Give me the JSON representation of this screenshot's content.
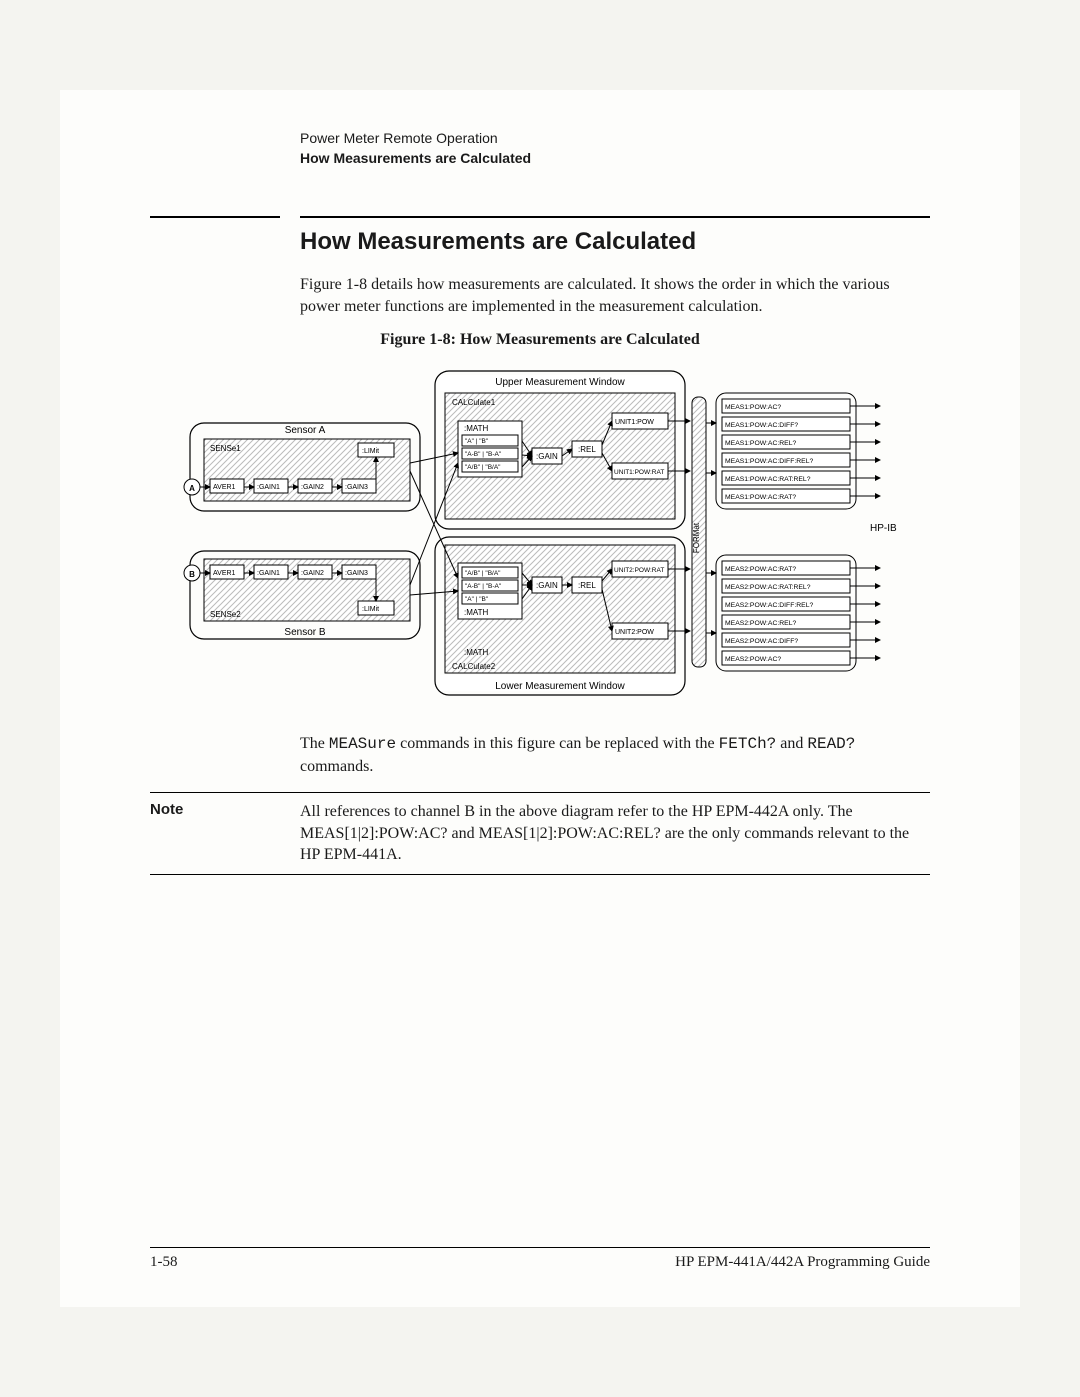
{
  "header": {
    "line1": "Power Meter Remote Operation",
    "line2": "How Measurements are Calculated"
  },
  "section_title": "How Measurements are Calculated",
  "intro": "Figure 1-8 details how measurements are calculated. It shows the order in which the various power meter functions are implemented in the measurement calculation.",
  "figure_caption": "Figure 1-8:  How Measurements are Calculated",
  "post_text_parts": {
    "a": "The ",
    "b": "MEASure",
    "c": " commands in this figure can be replaced with the ",
    "d": "FETCh?",
    "e": " and ",
    "f": "READ?",
    "g": " commands."
  },
  "note": {
    "label": "Note",
    "body": "All references to channel B in the above diagram refer to the HP EPM-442A only. The MEAS[1|2]:POW:AC? and MEAS[1|2]:POW:AC:REL? are the only commands relevant to the HP EPM-441A."
  },
  "footer": {
    "page": "1-58",
    "guide": "HP EPM-441A/442A Programming Guide"
  },
  "diagram": {
    "upper_window": "Upper Measurement Window",
    "lower_window": "Lower Measurement Window",
    "calc1": "CALCulate1",
    "calc2": "CALCulate2",
    "sensorA": "Sensor A",
    "sensorB": "Sensor B",
    "sense1": "SENSe1",
    "sense2": "SENSe2",
    "chA": "A",
    "chB": "B",
    "aver": "AVER1",
    "gain1": ":GAIN1",
    "gain2": ":GAIN2",
    "gain3": ":GAIN3",
    "limit": ":LIMit",
    "math": ":MATH",
    "math_r1": "\"A\" | \"B\"",
    "math_r2": "\"A-B\" | \"B-A\"",
    "math_r3": "\"A/B\" | \"B/A\"",
    "gain": ":GAIN",
    "rel": ":REL",
    "unit1pow": "UNIT1:POW",
    "unit1powrat": "UNIT1:POW:RAT",
    "unit2pow": "UNIT2:POW",
    "unit2powrat": "UNIT2:POW:RAT",
    "format": "FORMat",
    "hpib": "HP-IB",
    "meas_rows_top": [
      "MEAS1:POW:AC?",
      "MEAS1:POW:AC:DIFF?",
      "MEAS1:POW:AC:REL?",
      "MEAS1:POW:AC:DIFF:REL?",
      "MEAS1:POW:AC:RAT:REL?",
      "MEAS1:POW:AC:RAT?"
    ],
    "meas_rows_bot": [
      "MEAS2:POW:AC:RAT?",
      "MEAS2:POW:AC:RAT:REL?",
      "MEAS2:POW:AC:DIFF:REL?",
      "MEAS2:POW:AC:REL?",
      "MEAS2:POW:AC:DIFF?",
      "MEAS2:POW:AC?"
    ],
    "stroke": "#000000",
    "fill_bg": "#ffffff",
    "hatch": "#cccccc"
  }
}
